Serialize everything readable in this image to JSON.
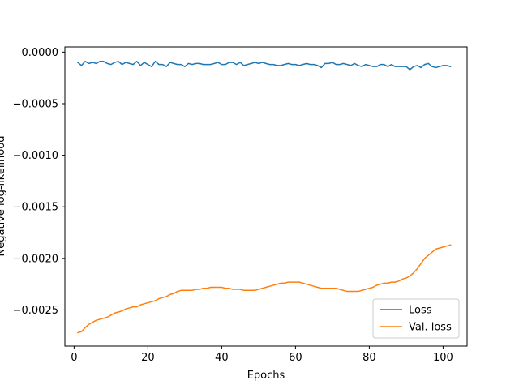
{
  "chart_data": {
    "type": "line",
    "xlabel": "Epochs",
    "ylabel": "Negative log-likelihood",
    "xlim": [
      -2.5,
      106.5
    ],
    "ylim": [
      -0.00285,
      5e-05
    ],
    "xticks": [
      0,
      20,
      40,
      60,
      80,
      100
    ],
    "xtick_labels": [
      "0",
      "20",
      "40",
      "60",
      "80",
      "100"
    ],
    "yticks": [
      0.0,
      -0.0005,
      -0.001,
      -0.0015,
      -0.002,
      -0.0025
    ],
    "ytick_labels": [
      "0.0000",
      "−0.0005",
      "−0.0010",
      "−0.0015",
      "−0.0020",
      "−0.0025"
    ],
    "legend_position": "lower-right",
    "grid": false,
    "series": [
      {
        "name": "Loss",
        "color": "#1f77b4",
        "x": [
          1,
          2,
          3,
          4,
          5,
          6,
          7,
          8,
          9,
          10,
          11,
          12,
          13,
          14,
          15,
          16,
          17,
          18,
          19,
          20,
          21,
          22,
          23,
          24,
          25,
          26,
          27,
          28,
          29,
          30,
          31,
          32,
          33,
          34,
          35,
          36,
          37,
          38,
          39,
          40,
          41,
          42,
          43,
          44,
          45,
          46,
          47,
          48,
          49,
          50,
          51,
          52,
          53,
          54,
          55,
          56,
          57,
          58,
          59,
          60,
          61,
          62,
          63,
          64,
          65,
          66,
          67,
          68,
          69,
          70,
          71,
          72,
          73,
          74,
          75,
          76,
          77,
          78,
          79,
          80,
          81,
          82,
          83,
          84,
          85,
          86,
          87,
          88,
          89,
          90,
          91,
          92,
          93,
          94,
          95,
          96,
          97,
          98,
          99,
          100,
          101,
          102
        ],
        "values": [
          -0.0001,
          -0.00013,
          -9e-05,
          -0.00011,
          -0.0001,
          -0.00011,
          -9e-05,
          -9e-05,
          -0.00011,
          -0.00012,
          -0.0001,
          -9e-05,
          -0.00012,
          -0.0001,
          -0.00011,
          -0.00012,
          -9e-05,
          -0.00013,
          -0.0001,
          -0.00012,
          -0.00014,
          -9e-05,
          -0.00012,
          -0.00012,
          -0.00014,
          -0.0001,
          -0.00011,
          -0.00012,
          -0.00012,
          -0.00014,
          -0.00011,
          -0.00012,
          -0.00011,
          -0.00011,
          -0.00012,
          -0.00012,
          -0.00012,
          -0.00011,
          -0.0001,
          -0.00012,
          -0.00012,
          -0.0001,
          -0.0001,
          -0.00012,
          -0.0001,
          -0.00013,
          -0.00012,
          -0.00011,
          -0.0001,
          -0.00011,
          -0.0001,
          -0.00011,
          -0.00012,
          -0.00012,
          -0.00013,
          -0.00013,
          -0.00012,
          -0.00011,
          -0.00012,
          -0.00012,
          -0.00013,
          -0.00012,
          -0.00011,
          -0.00012,
          -0.00012,
          -0.00013,
          -0.00015,
          -0.00011,
          -0.00011,
          -0.0001,
          -0.00012,
          -0.00012,
          -0.00011,
          -0.00012,
          -0.00013,
          -0.00011,
          -0.00013,
          -0.00014,
          -0.00012,
          -0.00013,
          -0.00014,
          -0.00014,
          -0.00012,
          -0.00012,
          -0.00014,
          -0.00012,
          -0.00014,
          -0.00014,
          -0.00014,
          -0.00014,
          -0.00017,
          -0.00014,
          -0.00013,
          -0.00015,
          -0.00012,
          -0.00011,
          -0.00014,
          -0.00015,
          -0.00014,
          -0.00013,
          -0.00013,
          -0.00014
        ]
      },
      {
        "name": "Val. loss",
        "color": "#ff7f0e",
        "x": [
          1,
          2,
          3,
          4,
          5,
          6,
          7,
          8,
          9,
          10,
          11,
          12,
          13,
          14,
          15,
          16,
          17,
          18,
          19,
          20,
          21,
          22,
          23,
          24,
          25,
          26,
          27,
          28,
          29,
          30,
          31,
          32,
          33,
          34,
          35,
          36,
          37,
          38,
          39,
          40,
          41,
          42,
          43,
          44,
          45,
          46,
          47,
          48,
          49,
          50,
          51,
          52,
          53,
          54,
          55,
          56,
          57,
          58,
          59,
          60,
          61,
          62,
          63,
          64,
          65,
          66,
          67,
          68,
          69,
          70,
          71,
          72,
          73,
          74,
          75,
          76,
          77,
          78,
          79,
          80,
          81,
          82,
          83,
          84,
          85,
          86,
          87,
          88,
          89,
          90,
          91,
          92,
          93,
          94,
          95,
          96,
          97,
          98,
          99,
          100,
          101,
          102
        ],
        "values": [
          -0.00272,
          -0.00271,
          -0.00267,
          -0.00264,
          -0.00262,
          -0.0026,
          -0.00259,
          -0.00258,
          -0.00257,
          -0.00255,
          -0.00253,
          -0.00252,
          -0.00251,
          -0.00249,
          -0.00248,
          -0.00247,
          -0.00247,
          -0.00245,
          -0.00244,
          -0.00243,
          -0.00242,
          -0.00241,
          -0.00239,
          -0.00238,
          -0.00237,
          -0.00235,
          -0.00234,
          -0.00232,
          -0.00231,
          -0.00231,
          -0.00231,
          -0.00231,
          -0.0023,
          -0.0023,
          -0.00229,
          -0.00229,
          -0.00228,
          -0.00228,
          -0.00228,
          -0.00228,
          -0.00229,
          -0.00229,
          -0.0023,
          -0.0023,
          -0.0023,
          -0.00231,
          -0.00231,
          -0.00231,
          -0.00231,
          -0.0023,
          -0.00229,
          -0.00228,
          -0.00227,
          -0.00226,
          -0.00225,
          -0.00224,
          -0.00224,
          -0.00223,
          -0.00223,
          -0.00223,
          -0.00223,
          -0.00224,
          -0.00225,
          -0.00226,
          -0.00227,
          -0.00228,
          -0.00229,
          -0.00229,
          -0.00229,
          -0.00229,
          -0.00229,
          -0.0023,
          -0.00231,
          -0.00232,
          -0.00232,
          -0.00232,
          -0.00232,
          -0.00231,
          -0.0023,
          -0.00229,
          -0.00228,
          -0.00226,
          -0.00225,
          -0.00224,
          -0.00224,
          -0.00223,
          -0.00223,
          -0.00222,
          -0.0022,
          -0.00219,
          -0.00217,
          -0.00214,
          -0.0021,
          -0.00205,
          -0.002,
          -0.00197,
          -0.00194,
          -0.00191,
          -0.0019,
          -0.00189,
          -0.00188,
          -0.00187
        ]
      }
    ]
  }
}
